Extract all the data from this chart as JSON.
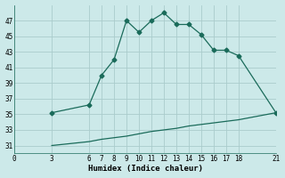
{
  "xlabel": "Humidex (Indice chaleur)",
  "background_color": "#cce9e9",
  "grid_color": "#b8d8d8",
  "line_color": "#1a6b5a",
  "curve1_x": [
    3,
    6,
    7,
    8,
    9,
    10,
    11,
    12,
    13,
    14,
    15,
    16,
    17,
    18,
    21
  ],
  "curve1_y": [
    35.2,
    36.2,
    40.0,
    42.0,
    47.0,
    45.5,
    47.0,
    48.0,
    46.5,
    46.5,
    45.2,
    43.2,
    43.2,
    42.5,
    35.2
  ],
  "curve2_x": [
    3,
    6,
    7,
    8,
    9,
    10,
    11,
    12,
    13,
    14,
    15,
    16,
    17,
    18,
    21
  ],
  "curve2_y": [
    31.0,
    31.5,
    31.8,
    32.0,
    32.2,
    32.5,
    32.8,
    33.0,
    33.2,
    33.5,
    33.7,
    33.9,
    34.1,
    34.3,
    35.2
  ],
  "xlim": [
    0,
    21
  ],
  "ylim": [
    30,
    49
  ],
  "xticks": [
    0,
    3,
    6,
    7,
    8,
    9,
    10,
    11,
    12,
    13,
    14,
    15,
    16,
    17,
    18,
    21
  ],
  "yticks": [
    31,
    33,
    35,
    37,
    39,
    41,
    43,
    45,
    47
  ],
  "marker": "D",
  "markersize": 2.5,
  "linewidth": 0.9
}
